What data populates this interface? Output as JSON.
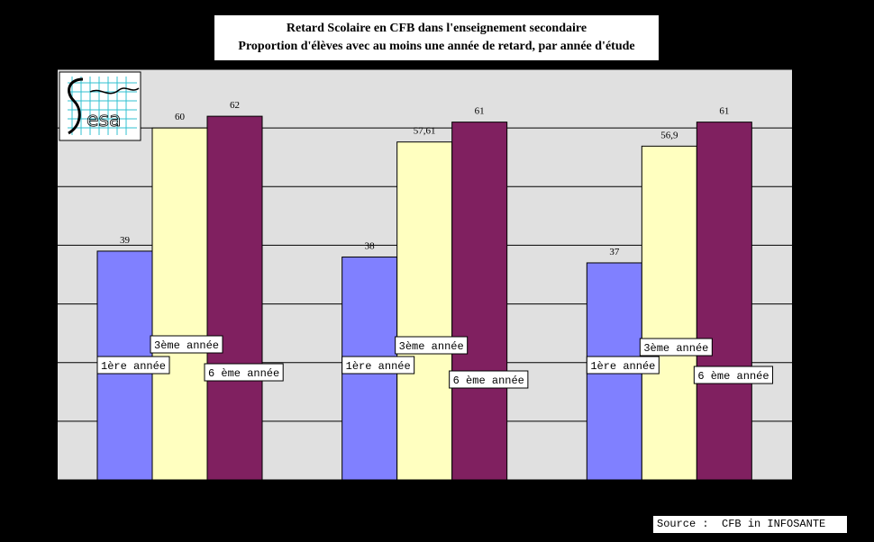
{
  "title_line1": "Retard Scolaire  en CFB dans l'enseignement secondaire",
  "title_line2": "Proportion d'élèves avec au moins une année de retard, par année d'étude",
  "source": "Source :  CFB in INFOSANTE",
  "logo_text": "esa",
  "chart_data": {
    "type": "bar",
    "title": "Retard Scolaire  en CFB dans l'enseignement secondaire",
    "subtitle": "Proportion d'élèves avec au moins une année de retard, par année d'étude",
    "categories": [
      "",
      "",
      ""
    ],
    "series": [
      {
        "name": "1ère année",
        "color": "#8080ff",
        "values": [
          39,
          38,
          37
        ],
        "labels": [
          "39",
          "38",
          "37"
        ]
      },
      {
        "name": "3ème année",
        "color": "#ffffc0",
        "values": [
          60,
          57.61,
          56.9
        ],
        "labels": [
          "60",
          "57,61",
          "56,9"
        ]
      },
      {
        "name": "6 ème année",
        "color": "#802060",
        "values": [
          62,
          61,
          61
        ],
        "labels": [
          "62",
          "61",
          "61"
        ]
      }
    ],
    "ylim": [
      0,
      70
    ],
    "grid": true,
    "plot_background": "#e0e0e0"
  }
}
